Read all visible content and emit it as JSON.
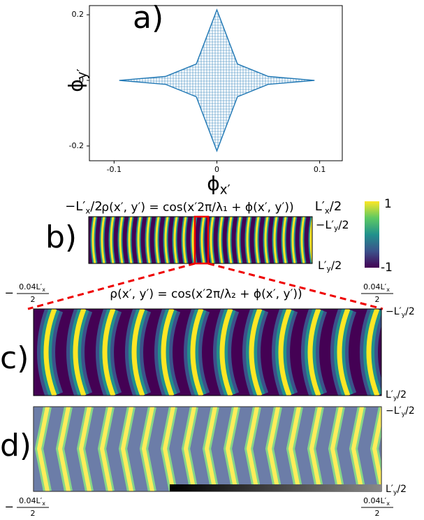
{
  "panel_a": {
    "label": "a)",
    "chart_data": {
      "type": "mesh",
      "color": "#1f77b4",
      "x": [
        -0.095,
        -0.05,
        -0.02,
        0,
        0.02,
        0.05,
        0.095,
        0.05,
        0.02,
        0,
        -0.02,
        -0.05,
        -0.095
      ],
      "y": [
        0,
        0.012,
        0.05,
        0.215,
        0.05,
        0.012,
        0,
        -0.012,
        -0.05,
        -0.215,
        -0.05,
        -0.012,
        0
      ],
      "xlim": [
        -0.124,
        0.122
      ],
      "ylim": [
        -0.245,
        0.228
      ],
      "xticks": [
        -0.1,
        0,
        0.1
      ],
      "yticks": [
        -0.2,
        0,
        0.2
      ],
      "xlabel": {
        "main": "ϕ",
        "sub": "x′"
      },
      "ylabel": {
        "main": "ϕ",
        "sub": "y′"
      }
    }
  },
  "panel_b": {
    "label": "b)",
    "formula": "ρ(x′, y′) = cos(x′2π/λ₁ + ϕ(x′, y′))",
    "left_top": {
      "main": "−L′",
      "sub": "x",
      "tail": "/2"
    },
    "right_top": {
      "main": "L′",
      "sub": "x",
      "tail": "/2"
    },
    "right_upper": {
      "main": "−L′",
      "sub": "y",
      "tail": "/2"
    },
    "right_lower": {
      "main": "L′",
      "sub": "y",
      "tail": "/2"
    },
    "colorbar": {
      "max": "1",
      "min": "-1"
    }
  },
  "panel_c": {
    "label": "c)",
    "formula": "ρ(x′, y′) = cos(x′2π/λ₂ + ϕ(x′, y′))",
    "left_top": {
      "sign": "−",
      "num": "0.04L′",
      "sub": "x",
      "den": "2"
    },
    "right_top": {
      "num": "0.04L′",
      "sub": "x",
      "den": "2"
    },
    "right_upper": {
      "main": "−L′",
      "sub": "y",
      "tail": "/2"
    },
    "right_lower": {
      "main": "L′",
      "sub": "y",
      "tail": "/2"
    }
  },
  "panel_d": {
    "label": "d)",
    "left_bottom": {
      "sign": "−",
      "num": "0.04L′",
      "sub": "x",
      "den": "2"
    },
    "right_bottom": {
      "num": "0.04L′",
      "sub": "x",
      "den": "2"
    },
    "right_upper": {
      "main": "−L′",
      "sub": "y",
      "tail": "/2"
    },
    "right_lower": {
      "main": "L′",
      "sub": "y",
      "tail": "/2"
    }
  }
}
